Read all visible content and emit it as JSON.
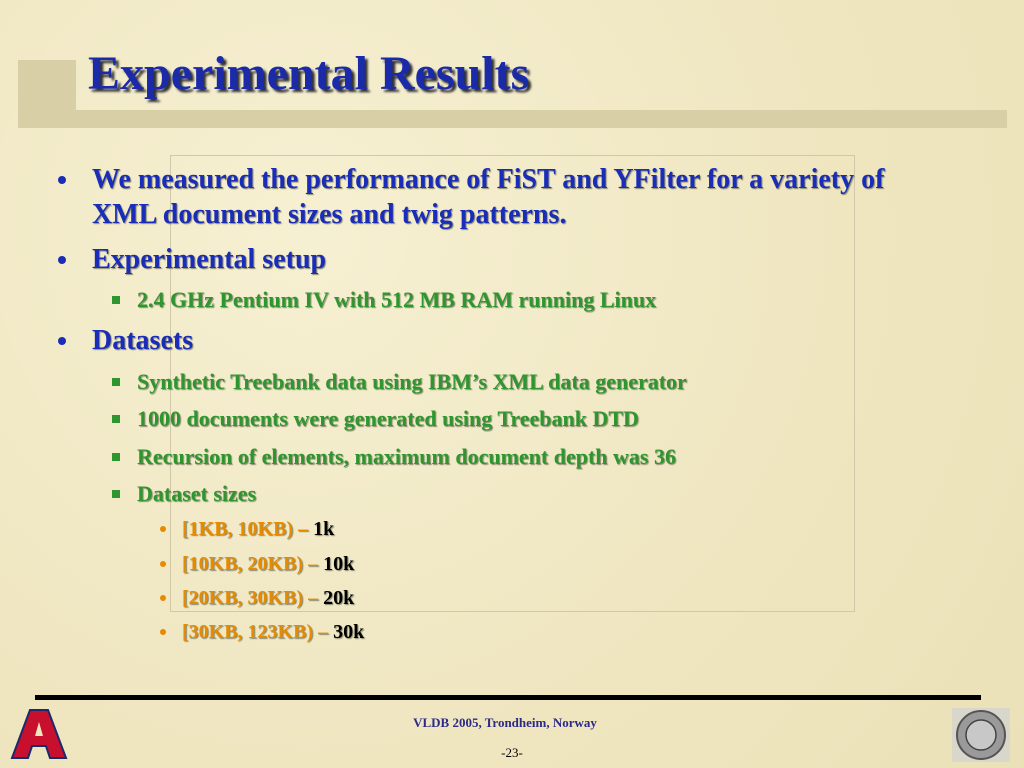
{
  "title": "Experimental Results",
  "bullets": [
    {
      "text": "We measured the performance of FiST and YFilter for a variety of XML document sizes and twig patterns."
    },
    {
      "text": "Experimental setup",
      "items": [
        {
          "text": "2.4 GHz Pentium IV with 512 MB RAM running Linux"
        }
      ]
    },
    {
      "text": "Datasets",
      "items": [
        {
          "text": "Synthetic Treebank data using IBM’s XML data generator"
        },
        {
          "text": "1000 documents were generated using Treebank DTD"
        },
        {
          "text": "Recursion of elements, maximum document depth was 36"
        },
        {
          "text": "Dataset sizes",
          "items": [
            {
              "range": "[1KB, 10KB) –",
              "count": "1k"
            },
            {
              "range": "[10KB, 20KB) –",
              "count": "10k"
            },
            {
              "range": "[20KB, 30KB) –",
              "count": "20k"
            },
            {
              "range": "[30KB, 123KB) –",
              "count": "30k"
            }
          ]
        }
      ]
    }
  ],
  "footer": {
    "venue": "VLDB 2005, Trondheim, Norway",
    "page": "-23-"
  }
}
